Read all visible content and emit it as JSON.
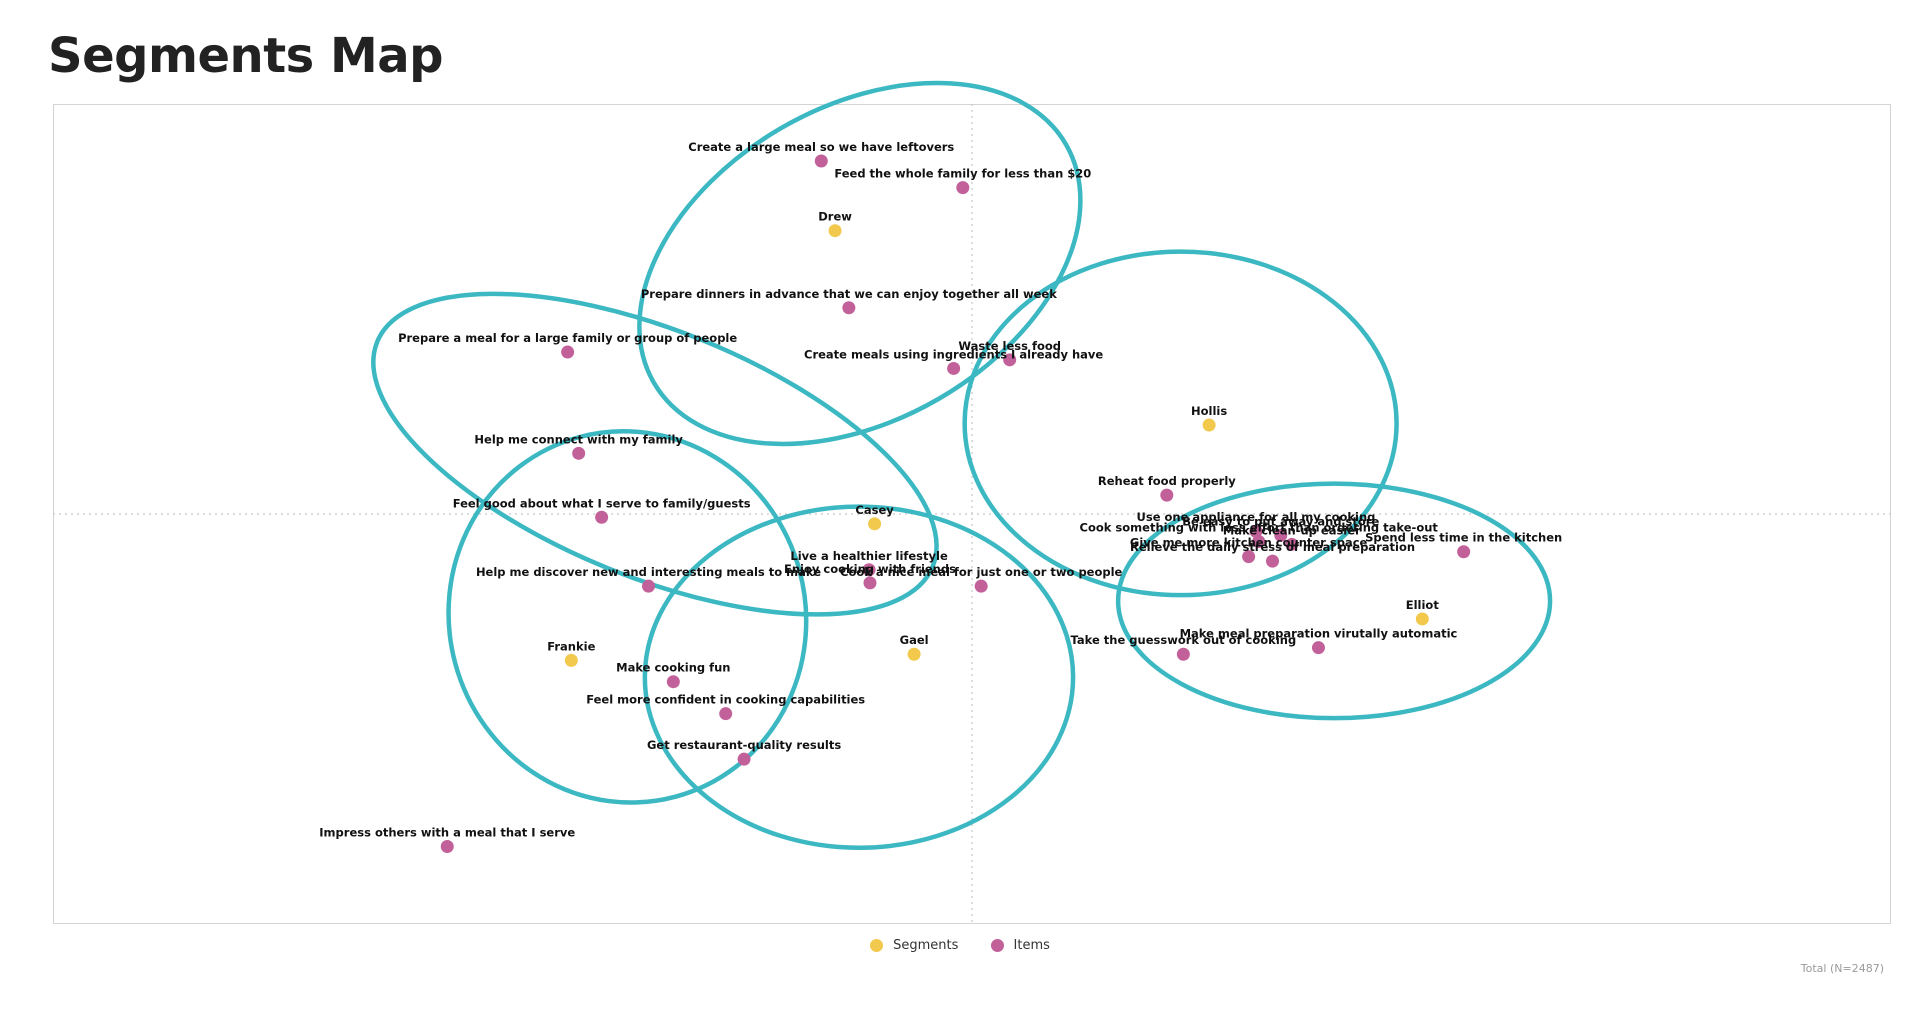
{
  "page": {
    "title": "Segments Map",
    "footnote": "Total (N=2487)"
  },
  "colors": {
    "segment": "#f2c94c",
    "item": "#c2609a",
    "ellipse": "#3cb8c2",
    "frame": "#d4d4d4",
    "axis": "#c8c8c8"
  },
  "legend": {
    "segments_label": "Segments",
    "items_label": "Items",
    "placement": "bottom-center"
  },
  "chart_data": {
    "type": "scatter",
    "grid": false,
    "xlim": [
      -1,
      1
    ],
    "ylim": [
      -1,
      1
    ],
    "series": [
      {
        "name": "Segments",
        "kind": "segment",
        "points": [
          {
            "label": "Drew",
            "x": -0.149,
            "y": 0.691
          },
          {
            "label": "Hollis",
            "x": 0.258,
            "y": 0.217
          },
          {
            "label": "Casey",
            "x": -0.106,
            "y": -0.024
          },
          {
            "label": "Gael",
            "x": -0.063,
            "y": -0.342
          },
          {
            "label": "Elliot",
            "x": 0.49,
            "y": -0.256
          },
          {
            "label": "Frankie",
            "x": -0.436,
            "y": -0.357
          }
        ]
      },
      {
        "name": "Items",
        "kind": "item",
        "points": [
          {
            "label": "Create a large meal so we have leftovers",
            "x": -0.164,
            "y": 0.861
          },
          {
            "label": "Feed the whole family for less than $20",
            "x": -0.01,
            "y": 0.796
          },
          {
            "label": "Prepare dinners in advance that we can enjoy together all week",
            "x": -0.134,
            "y": 0.503
          },
          {
            "label": "Prepare a meal for a large family or group of people",
            "x": -0.44,
            "y": 0.395
          },
          {
            "label": "Waste less food",
            "x": 0.041,
            "y": 0.376
          },
          {
            "label": "Create meals using ingredients I already have",
            "x": -0.02,
            "y": 0.355
          },
          {
            "label": "Help me connect with my family",
            "x": -0.428,
            "y": 0.148
          },
          {
            "label": "Reheat food properly",
            "x": 0.212,
            "y": 0.046
          },
          {
            "label": "Feel good about what I serve to family/guests",
            "x": -0.403,
            "y": -0.008
          },
          {
            "label": "Use one appliance for all my cooking",
            "x": 0.309,
            "y": -0.042
          },
          {
            "label": "Be easy to put away and store",
            "x": 0.336,
            "y": -0.052
          },
          {
            "label": "Cook something with less effort than ordering take-out",
            "x": 0.312,
            "y": -0.067
          },
          {
            "label": "Make clean-up easier",
            "x": 0.348,
            "y": -0.074
          },
          {
            "label": "Spend less time in the kitchen",
            "x": 0.535,
            "y": -0.092
          },
          {
            "label": "Give me more kitchen counter space",
            "x": 0.301,
            "y": -0.104
          },
          {
            "label": "Relieve the daily stress of meal preparation",
            "x": 0.327,
            "y": -0.115
          },
          {
            "label": "Live a healthier lifestyle",
            "x": -0.112,
            "y": -0.136
          },
          {
            "label": "Enjoy cooking with friends",
            "x": -0.111,
            "y": -0.168
          },
          {
            "label": "Help me discover new and interesting meals to make",
            "x": -0.352,
            "y": -0.176
          },
          {
            "label": "Cook a nice meal for just one or two people",
            "x": 0.01,
            "y": -0.176
          },
          {
            "label": "Make meal preparation virutally automatic",
            "x": 0.377,
            "y": -0.326
          },
          {
            "label": "Take the guesswork out of cooking",
            "x": 0.23,
            "y": -0.342
          },
          {
            "label": "Make cooking fun",
            "x": -0.325,
            "y": -0.409
          },
          {
            "label": "Feel more confident in cooking capabilities",
            "x": -0.268,
            "y": -0.487
          },
          {
            "label": "Get restaurant-quality results",
            "x": -0.248,
            "y": -0.598
          },
          {
            "label": "Impress others with a meal that I serve",
            "x": -0.571,
            "y": -0.811
          }
        ]
      }
    ],
    "clusters": [
      {
        "cx": -0.122,
        "cy": 0.611,
        "rx": 0.259,
        "ry": 0.382,
        "rotation_deg": -30
      },
      {
        "cx": -0.345,
        "cy": 0.146,
        "rx": 0.326,
        "ry": 0.301,
        "rotation_deg": 22
      },
      {
        "cx": 0.227,
        "cy": 0.221,
        "rx": 0.235,
        "ry": 0.419,
        "rotation_deg": 0
      },
      {
        "cx": 0.394,
        "cy": -0.212,
        "rx": 0.235,
        "ry": 0.286,
        "rotation_deg": 0
      },
      {
        "cx": -0.375,
        "cy": -0.251,
        "rx": 0.194,
        "ry": 0.454,
        "rotation_deg": -15
      },
      {
        "cx": -0.123,
        "cy": -0.398,
        "rx": 0.233,
        "ry": 0.416,
        "rotation_deg": 0
      }
    ]
  }
}
